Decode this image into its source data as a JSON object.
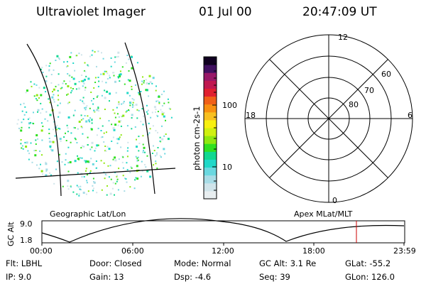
{
  "header": {
    "instrument": "Ultraviolet Imager",
    "date": "01 Jul 00",
    "time": "20:47:09 UT"
  },
  "colorbar": {
    "label": "photon cm-2s-1",
    "tick_labels": [
      "100",
      "10"
    ],
    "colors": [
      "#e8eef0",
      "#d0e4ea",
      "#a8dce6",
      "#6ad8e0",
      "#20d8c8",
      "#10d890",
      "#30e020",
      "#90e810",
      "#d0f010",
      "#f8f010",
      "#f8c020",
      "#f89010",
      "#f06018",
      "#e02030",
      "#c01850",
      "#981868",
      "#401060",
      "#100020"
    ]
  },
  "panels": {
    "left_label": "Geographic Lat/Lon",
    "right_label": "Apex MLat/MLT"
  },
  "polar_plot": {
    "mlt_labels": [
      "12",
      "18",
      "6",
      "0"
    ],
    "lat_labels": [
      "60",
      "70",
      "80"
    ]
  },
  "altitude_strip": {
    "ylabel": "GC Alt",
    "ymax": "9.0",
    "ymin": "1.8",
    "time_ticks": [
      "00:00",
      "06:00",
      "12:00",
      "18:00",
      "23:59"
    ],
    "current_time_marker_color": "#cc0000"
  },
  "status": {
    "flt": "Flt: LBHL",
    "ip": "IP:  9.0",
    "door": "Door: Closed",
    "gain": "Gain: 13",
    "mode": "Mode: Normal",
    "dsp": "Dsp:   -4.6",
    "gc_alt": "GC Alt: 3.1 Re",
    "seq": "Seq: 39",
    "glat": "GLat: -55.2",
    "glon": "GLon: 126.0"
  }
}
